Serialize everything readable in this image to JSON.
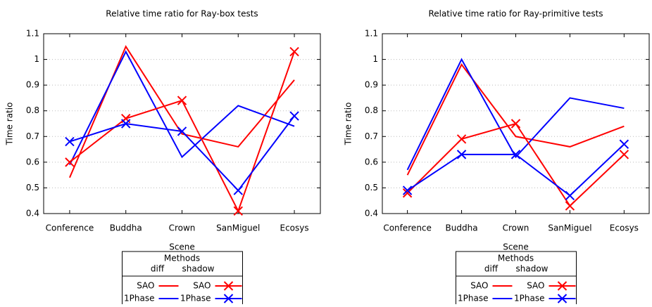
{
  "chart_data": [
    {
      "type": "line",
      "title": "Relative time ratio for Ray-box tests",
      "x_label": "Scene",
      "y_label": "Time ratio",
      "categories": [
        "Conference",
        "Buddha",
        "Crown",
        "SanMiguel",
        "Ecosys"
      ],
      "ylim": [
        0.4,
        1.1
      ],
      "yticks": [
        0.4,
        0.5,
        0.6,
        0.7,
        0.8,
        0.9,
        1,
        1.1
      ],
      "grid": true,
      "legend": {
        "title": "Methods",
        "columns": [
          "diff",
          "shadow"
        ]
      },
      "series": [
        {
          "name": "SAO",
          "color": "#ff0000",
          "values": [
            0.54,
            1.05,
            0.71,
            0.66,
            0.92
          ]
        },
        {
          "name": "1Phase",
          "color": "#0000ff",
          "values": [
            0.59,
            1.03,
            0.62,
            0.82,
            0.74
          ]
        },
        {
          "name": "SAO",
          "color": "#ff0000",
          "marker": "x",
          "values": [
            0.6,
            0.77,
            0.84,
            0.41,
            1.03
          ]
        },
        {
          "name": "1Phase",
          "color": "#0000ff",
          "marker": "x",
          "values": [
            0.68,
            0.75,
            0.72,
            0.49,
            0.78
          ]
        }
      ]
    },
    {
      "type": "line",
      "title": "Relative time ratio for Ray-primitive tests",
      "x_label": "Scene",
      "y_label": "Time ratio",
      "categories": [
        "Conference",
        "Buddha",
        "Crown",
        "SanMiguel",
        "Ecosys"
      ],
      "ylim": [
        0.4,
        1.1
      ],
      "yticks": [
        0.4,
        0.5,
        0.6,
        0.7,
        0.8,
        0.9,
        1,
        1.1
      ],
      "grid": true,
      "legend": {
        "title": "Methods",
        "columns": [
          "diff",
          "shadow"
        ]
      },
      "series": [
        {
          "name": "SAO",
          "color": "#ff0000",
          "values": [
            0.55,
            0.98,
            0.7,
            0.66,
            0.74
          ]
        },
        {
          "name": "1Phase",
          "color": "#0000ff",
          "values": [
            0.57,
            1.0,
            0.62,
            0.85,
            0.81
          ]
        },
        {
          "name": "SAO",
          "color": "#ff0000",
          "marker": "x",
          "values": [
            0.48,
            0.69,
            0.75,
            0.43,
            0.63
          ]
        },
        {
          "name": "1Phase",
          "color": "#0000ff",
          "marker": "x",
          "values": [
            0.49,
            0.63,
            0.63,
            0.47,
            0.67
          ]
        }
      ]
    }
  ]
}
